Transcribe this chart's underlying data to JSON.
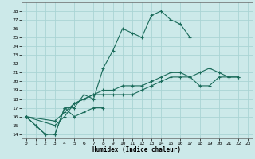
{
  "xlabel": "Humidex (Indice chaleur)",
  "background_color": "#cce9e9",
  "grid_color": "#aad4d4",
  "line_color": "#1a6b5a",
  "xlim": [
    -0.5,
    23.5
  ],
  "ylim": [
    13.5,
    29.0
  ],
  "xticks": [
    0,
    1,
    2,
    3,
    4,
    5,
    6,
    7,
    8,
    9,
    10,
    11,
    12,
    13,
    14,
    15,
    16,
    17,
    18,
    19,
    20,
    21,
    22,
    23
  ],
  "yticks": [
    14,
    15,
    16,
    17,
    18,
    19,
    20,
    21,
    22,
    23,
    24,
    25,
    26,
    27,
    28
  ],
  "series": [
    [
      16.0,
      15.0,
      14.0,
      14.0,
      17.0,
      17.0,
      18.5,
      18.0,
      21.5,
      23.5,
      26.0,
      25.5,
      25.0,
      27.5,
      28.0,
      27.0,
      26.5,
      25.0,
      null,
      null,
      null,
      null,
      null,
      null
    ],
    [
      16.0,
      15.0,
      14.0,
      14.0,
      17.0,
      16.0,
      16.5,
      17.0,
      17.0,
      null,
      null,
      null,
      null,
      null,
      null,
      null,
      null,
      null,
      null,
      null,
      null,
      null,
      null,
      null
    ],
    [
      16.0,
      null,
      null,
      15.0,
      16.0,
      17.5,
      18.0,
      18.5,
      18.5,
      18.5,
      18.5,
      18.5,
      19.0,
      19.5,
      20.0,
      20.5,
      20.5,
      20.5,
      21.0,
      21.5,
      21.0,
      20.5,
      20.5,
      null
    ],
    [
      16.0,
      null,
      null,
      15.5,
      16.5,
      17.5,
      18.0,
      18.5,
      19.0,
      19.0,
      19.5,
      19.5,
      19.5,
      20.0,
      20.5,
      21.0,
      21.0,
      20.5,
      19.5,
      19.5,
      20.5,
      20.5,
      20.5,
      null
    ]
  ]
}
